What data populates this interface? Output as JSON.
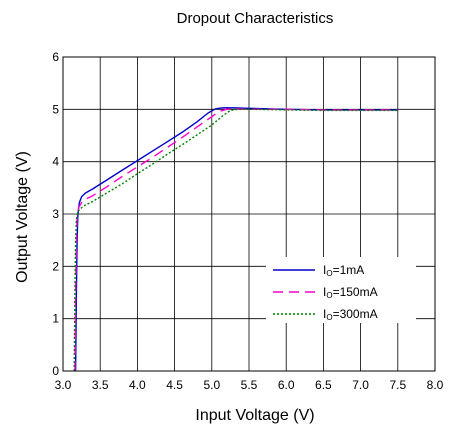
{
  "chart_data": {
    "type": "line",
    "title": "Dropout Characteristics",
    "xlabel": "Input Voltage (V)",
    "ylabel": "Output Voltage (V)",
    "xlim": [
      3.0,
      8.0
    ],
    "ylim": [
      0,
      6
    ],
    "grid": true,
    "legend_position": "lower-right",
    "x_ticks": [
      "3.0",
      "3.5",
      "4.0",
      "4.5",
      "5.0",
      "5.5",
      "6.0",
      "6.5",
      "7.0",
      "7.5",
      "8.0"
    ],
    "y_ticks": [
      "0",
      "1",
      "2",
      "3",
      "4",
      "5",
      "6"
    ],
    "series": [
      {
        "legend_main": "I",
        "legend_sub": "O",
        "legend_value": "=1mA",
        "color": "#0000cc",
        "dash": "solid",
        "x": [
          3.17,
          3.18,
          3.19,
          3.2,
          3.22,
          3.25,
          3.3,
          3.4,
          3.6,
          3.8,
          4.0,
          4.2,
          4.4,
          4.6,
          4.8,
          4.95,
          5.05,
          5.15,
          5.3,
          5.5,
          6.0,
          6.5,
          7.0,
          7.5
        ],
        "y": [
          0.0,
          1.5,
          2.5,
          3.0,
          3.22,
          3.33,
          3.4,
          3.48,
          3.66,
          3.84,
          4.02,
          4.2,
          4.38,
          4.56,
          4.76,
          4.93,
          5.01,
          5.03,
          5.03,
          5.02,
          5.0,
          4.99,
          4.99,
          4.99
        ]
      },
      {
        "legend_main": "I",
        "legend_sub": "O",
        "legend_value": "=150mA",
        "color": "#ff00cc",
        "dash": "long-dash",
        "x": [
          3.16,
          3.17,
          3.18,
          3.19,
          3.21,
          3.25,
          3.3,
          3.4,
          3.6,
          3.8,
          4.0,
          4.2,
          4.4,
          4.6,
          4.8,
          5.0,
          5.1,
          5.2,
          5.3,
          5.5,
          6.0,
          6.5,
          7.0,
          7.5
        ],
        "y": [
          0.0,
          1.5,
          2.5,
          2.95,
          3.12,
          3.22,
          3.28,
          3.35,
          3.53,
          3.72,
          3.9,
          4.08,
          4.27,
          4.46,
          4.66,
          4.86,
          4.96,
          5.0,
          5.01,
          5.0,
          5.0,
          4.99,
          4.99,
          4.99
        ]
      },
      {
        "legend_main": "I",
        "legend_sub": "O",
        "legend_value": "=300mA",
        "color": "#008000",
        "dash": "dotted",
        "x": [
          3.15,
          3.16,
          3.17,
          3.18,
          3.2,
          3.25,
          3.3,
          3.4,
          3.6,
          3.8,
          4.0,
          4.2,
          4.4,
          4.6,
          4.8,
          5.0,
          5.15,
          5.25,
          5.35,
          5.5,
          6.0,
          6.5,
          7.0,
          7.5
        ],
        "y": [
          0.0,
          1.5,
          2.5,
          2.9,
          3.05,
          3.12,
          3.17,
          3.24,
          3.41,
          3.58,
          3.77,
          3.95,
          4.14,
          4.32,
          4.51,
          4.7,
          4.88,
          4.98,
          5.0,
          5.0,
          4.99,
          4.98,
          4.98,
          4.98
        ]
      }
    ]
  }
}
